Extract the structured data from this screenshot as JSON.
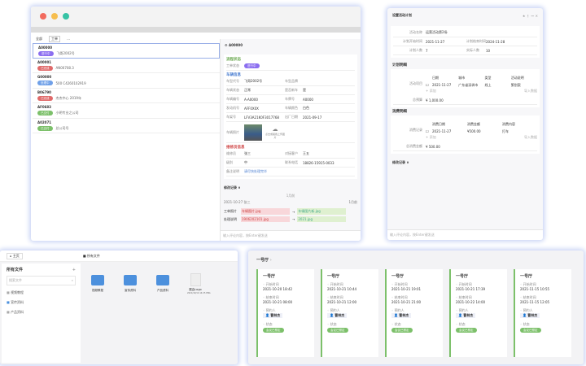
{
  "colors": {
    "purple": "#8b6ef0",
    "red": "#e06a6a",
    "blue": "#6fa0e8",
    "green": "#7cc06a",
    "folder": "#4c90dd",
    "accent_border": "#c9d4f5"
  },
  "work": {
    "toolbar": {
      "filter": "全部",
      "active": "工单",
      "more": "⋯"
    },
    "list": [
      {
        "id": "A00000",
        "tag": "进行中",
        "tag_color": "purple",
        "text": "飞哥2002号"
      },
      {
        "id": "A00001",
        "tag": "已完成",
        "tag_color": "red",
        "text": "AN00708.3"
      },
      {
        "id": "G00000",
        "tag": "处理中",
        "tag_color": "blue",
        "text": "500 C4260102919"
      },
      {
        "id": "B06790",
        "tag": "已完成",
        "tag_color": "red",
        "text": "杰杰中心 2019年"
      },
      {
        "id": "AF0683",
        "tag": "已交付",
        "tag_color": "green",
        "text": "小明专业之公司"
      },
      {
        "id": "A02071",
        "tag": "已交付",
        "tag_color": "green",
        "text": "总公司号"
      }
    ],
    "detail": {
      "title": "A00000",
      "sec1": "流程状态",
      "status_label": "工单状态",
      "status": "进行中",
      "sec2": "车辆信息",
      "fields": [
        [
          "车型代号",
          "飞哥2002号",
          "车型品牌",
          ""
        ],
        [
          "车辆状态",
          "正常",
          "是否新车",
          "是"
        ],
        [
          "车辆编号",
          "A-A0000",
          "车牌号",
          "A0000"
        ],
        [
          "发动机号",
          "AFF0X0X",
          "车辆颜色",
          "白色"
        ],
        [
          "车架号",
          "LFV3A21K0F3017768",
          "出厂日期",
          "2021-09-17"
        ]
      ],
      "photo_label": "车辆照片",
      "upload": "点击或拖拽上传图片",
      "sec3": "维修员信息",
      "fields2": [
        [
          "维修员",
          "张三",
          "对接客户",
          "王五"
        ],
        [
          "级别",
          "中",
          "联系电话",
          "18826-15915-0033"
        ]
      ],
      "remark_label": "备注说明",
      "remark": "请尽快处理完毕",
      "history": "修改记录 ∨",
      "history_date": "1月前",
      "log_user": "2021-10-27 张三",
      "log_time": "1月前",
      "log_rows": [
        [
          "工单照片",
          "车辆图片.jpg",
          "车辆图片新.jpg"
        ],
        [
          "处理说明",
          "1906202101.jpg",
          "2021.jpg"
        ]
      ],
      "footer": "输入评论内容，按Enter键发送"
    }
  },
  "plan": {
    "title": "设置活动计划",
    "name_label": "活动名称",
    "name": "运营活动第2场",
    "start_label": "计划开始时间",
    "start": "2021-11-27",
    "end_label": "计划结束时间",
    "end": "2024-11-28",
    "plan_count_label": "计划人数",
    "plan_count": "7",
    "actual_label": "实际人数",
    "actual": "10",
    "sec1": "计划明细",
    "table1_label": "活动项目",
    "table1_head": [
      "日期",
      "城市",
      "类型",
      "活动说明"
    ],
    "table1_row": [
      "2021-11-27",
      "广东省深圳市",
      "线上",
      "策划案"
    ],
    "add": "+ 添加",
    "import": "导入数据",
    "total_label": "总预算",
    "total": "¥ 1,000.00",
    "sec2": "消费明细",
    "table2_label": "消费记录",
    "table2_head": [
      "消费日期",
      "消费金额",
      "消费内容"
    ],
    "table2_row": [
      "2021-11-27",
      "¥500.00",
      "打车"
    ],
    "spent_label": "总消费金额",
    "spent": "¥ 500.00",
    "history": "修改记录 ∨",
    "footer": "输入评论内容，按Enter键发送"
  },
  "files": {
    "home": "主页",
    "crumb": "所有文件",
    "title": "所有文件",
    "search_placeholder": "搜索文件",
    "tree": [
      "视频教程",
      "宣传资料",
      "产品资料"
    ],
    "items": [
      {
        "name": "视频教程",
        "type": "folder"
      },
      {
        "name": "宣传资料",
        "type": "folder"
      },
      {
        "name": "产品资料",
        "type": "folder"
      },
      {
        "name": "展会Logo",
        "type": "file",
        "meta": "2021/10/14 14:25 PNG"
      }
    ]
  },
  "rooms": {
    "title": "一号厅",
    "cards": [
      {
        "title": "一号厅",
        "start": "2021-10-20 18:42",
        "end": "2021-10-21 08:00",
        "person": "曹林杰",
        "status": "会议已预定"
      },
      {
        "title": "一号厅",
        "start": "2021-10-21 10:44",
        "end": "2021-10-21 12:00",
        "person": "曹林杰",
        "status": "会议已预定"
      },
      {
        "title": "一号厅",
        "start": "2021-10-21 19:01",
        "end": "2021-10-21 21:00",
        "person": "曹林杰",
        "status": "会议已预定"
      },
      {
        "title": "一号厅",
        "start": "2021-10-21 17:39",
        "end": "2021-10-22 14:00",
        "person": "曹林杰",
        "status": "会议已预定"
      },
      {
        "title": "一号厅",
        "start": "2021-11-15 10:55",
        "end": "2021-11-15 12:05",
        "person": "曹林杰",
        "status": "会议已预定"
      }
    ],
    "labels": {
      "start": "开始时间",
      "end": "结束时间",
      "person": "预约人",
      "status": "状态"
    }
  }
}
